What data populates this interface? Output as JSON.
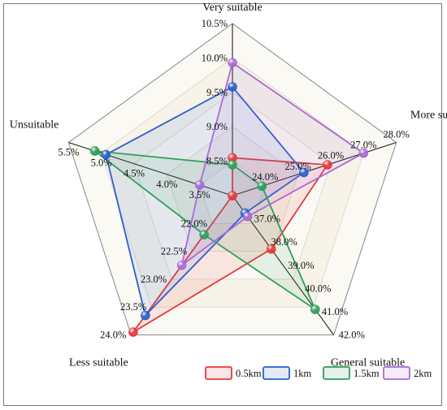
{
  "chart_data": {
    "type": "radar",
    "axes": [
      {
        "name": "Very suitable",
        "range": [
          8.0,
          10.5
        ],
        "ticks": [
          "8.5%",
          "9.0%",
          "9.5%",
          "10.0%",
          "10.5%"
        ],
        "tick_values": [
          8.5,
          9.0,
          9.5,
          10.0,
          10.5
        ]
      },
      {
        "name": "More suitable",
        "range": [
          23.0,
          28.0
        ],
        "ticks": [
          "24.0%",
          "25.0%",
          "26.0%",
          "27.0%",
          "28.0%"
        ],
        "tick_values": [
          24.0,
          25.0,
          26.0,
          27.0,
          28.0
        ]
      },
      {
        "name": "General suitable",
        "range": [
          36.0,
          42.0
        ],
        "ticks": [
          "37.0%",
          "38.0%",
          "39.0%",
          "40.0%",
          "41.0%",
          "42.0%"
        ],
        "tick_values": [
          37.0,
          38.0,
          39.0,
          40.0,
          41.0,
          42.0
        ]
      },
      {
        "name": "Less suitable",
        "range": [
          21.5,
          24.0
        ],
        "ticks": [
          "22.0%",
          "22.5%",
          "23.0%",
          "23.5%",
          "24.0%"
        ],
        "tick_values": [
          22.0,
          22.5,
          23.0,
          23.5,
          24.0
        ]
      },
      {
        "name": "Unsuitable",
        "range": [
          3.0,
          5.5
        ],
        "ticks": [
          "3.5%",
          "4.0%",
          "4.5%",
          "5.0%",
          "5.5%"
        ],
        "tick_values": [
          3.5,
          4.0,
          4.5,
          5.0,
          5.5
        ]
      }
    ],
    "series": [
      {
        "name": "0.5km",
        "color": "#e8383d",
        "values": [
          8.55,
          25.9,
          38.3,
          23.95,
          3.0
        ]
      },
      {
        "name": "1km",
        "color": "#2b5fcc",
        "values": [
          9.58,
          25.18,
          36.75,
          23.65,
          4.93
        ]
      },
      {
        "name": "1.5km",
        "color": "#2e9e5b",
        "values": [
          8.45,
          23.9,
          40.9,
          22.2,
          5.1
        ]
      },
      {
        "name": "2km",
        "color": "#a76bd6",
        "values": [
          9.93,
          27.0,
          36.9,
          22.75,
          3.5
        ]
      }
    ],
    "legend_position": "bottom-right",
    "grid": true
  }
}
